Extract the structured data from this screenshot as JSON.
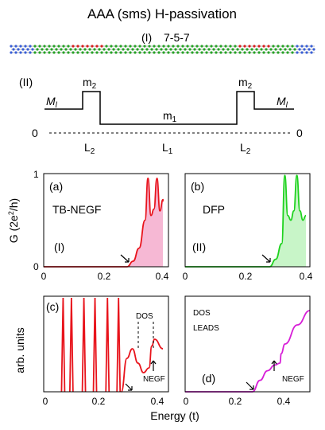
{
  "title": "AAA (sms) H-passivation",
  "structure": {
    "label_i": "(I)",
    "label_i_text": "7-5-7"
  },
  "mass_profile": {
    "label_ii": "(II)",
    "ml_left": "M",
    "ml_left_sub": "l",
    "ml_right": "M",
    "ml_right_sub": "l",
    "m2_left": "m",
    "m2_left_sub": "2",
    "m2_right": "m",
    "m2_right_sub": "2",
    "m1": "m",
    "m1_sub": "1",
    "zero_left": "0",
    "zero_right": "0",
    "l2_left": "L",
    "l2_left_sub": "2",
    "l1": "L",
    "l1_sub": "1",
    "l2_right": "L",
    "l2_right_sub": "2"
  },
  "panel_a": {
    "tag": "(a)",
    "method": "TB-NEGF",
    "roman": "(I)"
  },
  "panel_b": {
    "tag": "(b)",
    "method": "DFP",
    "roman": "(II)"
  },
  "panel_c": {
    "tag": "(c)",
    "dos": "DOS",
    "negf": "NEGF"
  },
  "panel_d": {
    "tag": "(d)",
    "dos": "DOS",
    "leads": "LEADS",
    "negf": "NEGF"
  },
  "axes": {
    "g_ylabel": "G (2e",
    "g_ylabel_sup": "2",
    "g_ylabel_end": "/h)",
    "arb_ylabel": "arb. units",
    "xlabel": "Energy (t)",
    "top_yticks": [
      "0",
      "1"
    ],
    "a_xticks": [
      "0",
      "0.2",
      "0.4"
    ],
    "b_xticks": [
      "0",
      "0.2",
      "0.4"
    ],
    "c_xticks": [
      "0",
      "0.2",
      "0.4"
    ],
    "d_xticks": [
      "0",
      "0.2",
      "0.4"
    ]
  },
  "colors": {
    "red": "#e8141c",
    "pink_fill": "#f6b8d4",
    "green": "#1ed21e",
    "green_fill": "#c8f5c8",
    "magenta": "#d71fd7"
  },
  "chart_data": [
    {
      "type": "area",
      "panel": "a",
      "xlim": [
        0,
        0.4
      ],
      "ylim": [
        0,
        1
      ],
      "ylabel": "G (2e^2/h)",
      "series": [
        {
          "x": [
            0,
            0.28,
            0.3,
            0.32,
            0.34,
            0.35,
            0.36,
            0.37,
            0.38,
            0.39,
            0.4,
            0.41
          ],
          "y": [
            0,
            0,
            0.06,
            0.2,
            0.5,
            0.95,
            0.55,
            0.62,
            0.95,
            0.6,
            0.72,
            0.7
          ]
        }
      ]
    },
    {
      "type": "area",
      "panel": "b",
      "xlim": [
        0,
        0.4
      ],
      "ylim": [
        0,
        1
      ],
      "series": [
        {
          "x": [
            0,
            0.28,
            0.3,
            0.32,
            0.33,
            0.34,
            0.35,
            0.36,
            0.37,
            0.38,
            0.39,
            0.4
          ],
          "y": [
            0,
            0,
            0.08,
            0.25,
            0.98,
            0.55,
            0.5,
            0.6,
            0.98,
            0.6,
            0.5,
            0.55
          ]
        }
      ]
    },
    {
      "type": "line",
      "panel": "c",
      "xlim": [
        0,
        0.43
      ],
      "peaks_x": [
        0.07,
        0.1,
        0.145,
        0.185,
        0.23,
        0.27
      ],
      "series": [
        {
          "x": [
            0.28,
            0.3,
            0.32,
            0.34,
            0.36,
            0.38,
            0.39,
            0.4,
            0.43
          ],
          "y": [
            0,
            0.35,
            0.45,
            0.3,
            0.2,
            0.25,
            0.48,
            0.55,
            0.45
          ]
        }
      ]
    },
    {
      "type": "line",
      "panel": "d",
      "xlim": [
        0,
        0.5
      ],
      "series": [
        {
          "x": [
            0,
            0.27,
            0.3,
            0.33,
            0.36,
            0.38,
            0.385,
            0.4,
            0.45,
            0.5
          ],
          "y": [
            0,
            0,
            0.12,
            0.22,
            0.28,
            0.3,
            0.4,
            0.5,
            0.7,
            0.85
          ]
        }
      ]
    }
  ]
}
